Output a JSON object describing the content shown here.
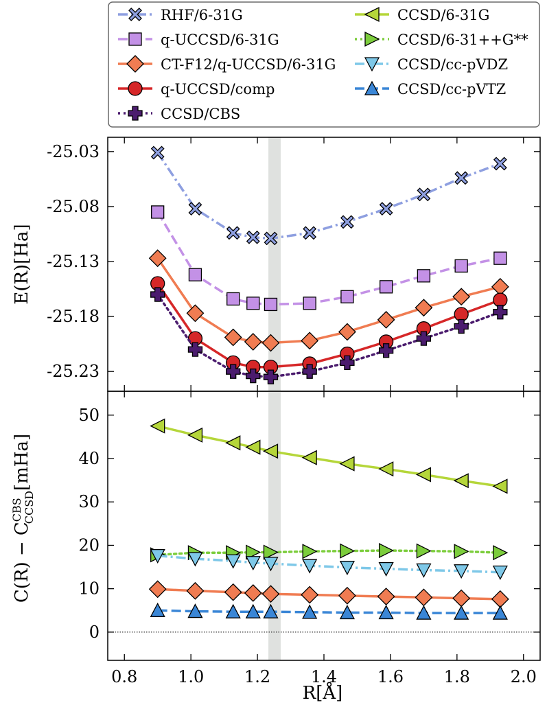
{
  "chart_data": [
    {
      "panel": "top",
      "type": "line",
      "ylabel": "E(R)[Ha]",
      "xlim": [
        0.75,
        2.05
      ],
      "ylim": [
        -25.248,
        -25.017
      ],
      "yticks": [
        -25.23,
        -25.18,
        -25.13,
        -25.08,
        -25.03
      ],
      "ytick_labels": [
        "-25.23",
        "-25.18",
        "-25.13",
        "-25.08",
        "-25.03"
      ],
      "highlight_band": [
        1.233,
        1.27
      ],
      "series": [
        {
          "name": "RHF/6-31G",
          "color": "#8e9fe0",
          "marker": "X",
          "dash": "dashdot",
          "x": [
            0.9,
            1.013,
            1.127,
            1.187,
            1.24,
            1.357,
            1.47,
            1.587,
            1.7,
            1.813,
            1.93
          ],
          "y": [
            -25.031,
            -25.082,
            -25.104,
            -25.108,
            -25.109,
            -25.104,
            -25.094,
            -25.082,
            -25.069,
            -25.054,
            -25.041
          ]
        },
        {
          "name": "q-UCCSD/6-31G",
          "color": "#c391e6",
          "marker": "square",
          "dash": "dashed",
          "x": [
            0.9,
            1.013,
            1.127,
            1.187,
            1.24,
            1.357,
            1.47,
            1.587,
            1.7,
            1.813,
            1.93
          ],
          "y": [
            -25.085,
            -25.142,
            -25.164,
            -25.168,
            -25.169,
            -25.168,
            -25.162,
            -25.153,
            -25.143,
            -25.134,
            -25.127
          ]
        },
        {
          "name": "CT-F12/q-UCCSD/6-31G",
          "color": "#f07c52",
          "marker": "diamond",
          "dash": "solid",
          "x": [
            0.9,
            1.013,
            1.127,
            1.187,
            1.24,
            1.357,
            1.47,
            1.587,
            1.7,
            1.813,
            1.93
          ],
          "y": [
            -25.127,
            -25.177,
            -25.199,
            -25.203,
            -25.204,
            -25.202,
            -25.194,
            -25.183,
            -25.172,
            -25.162,
            -25.153
          ]
        },
        {
          "name": "q-UCCSD/comp",
          "color": "#d62728",
          "marker": "circle",
          "dash": "solid",
          "x": [
            0.9,
            1.013,
            1.127,
            1.187,
            1.24,
            1.357,
            1.47,
            1.587,
            1.7,
            1.813,
            1.93
          ],
          "y": [
            -25.15,
            -25.2,
            -25.222,
            -25.226,
            -25.226,
            -25.223,
            -25.214,
            -25.203,
            -25.191,
            -25.178,
            -25.165
          ]
        },
        {
          "name": "CCSD/CBS",
          "color": "#4b1c6e",
          "marker": "plus",
          "dash": "dotted",
          "x": [
            0.9,
            1.013,
            1.127,
            1.187,
            1.24,
            1.357,
            1.47,
            1.587,
            1.7,
            1.813,
            1.93
          ],
          "y": [
            -25.16,
            -25.21,
            -25.23,
            -25.234,
            -25.235,
            -25.23,
            -25.222,
            -25.211,
            -25.2,
            -25.189,
            -25.176
          ]
        }
      ]
    },
    {
      "panel": "bottom",
      "type": "line",
      "xlabel": "R[Å]",
      "ylabel_main": "C(R) − C",
      "ylabel_sub": "CCSD",
      "ylabel_sup": "CBS",
      "ylabel_unit": "[mHa]",
      "xlim": [
        0.75,
        2.05
      ],
      "ylim": [
        -6.5,
        55.5
      ],
      "xticks": [
        0.8,
        1.0,
        1.2,
        1.4,
        1.6,
        1.8,
        2.0
      ],
      "xtick_labels": [
        "0.8",
        "1.0",
        "1.2",
        "1.4",
        "1.6",
        "1.8",
        "2.0"
      ],
      "yticks": [
        0,
        10,
        20,
        30,
        40,
        50
      ],
      "ytick_labels": [
        "0",
        "10",
        "20",
        "30",
        "40",
        "50"
      ],
      "zero_line": 0,
      "highlight_band": [
        1.233,
        1.27
      ],
      "series": [
        {
          "name": "CCSD/6-31G",
          "color": "#b5d63a",
          "marker": "triangle-left",
          "dash": "solid",
          "x": [
            0.9,
            1.013,
            1.127,
            1.187,
            1.24,
            1.357,
            1.47,
            1.587,
            1.7,
            1.813,
            1.93
          ],
          "y": [
            47.5,
            45.4,
            43.6,
            42.6,
            41.7,
            40.2,
            38.8,
            37.6,
            36.3,
            34.9,
            33.6
          ]
        },
        {
          "name": "CCSD/6-31++G**",
          "color": "#7ccd3c",
          "marker": "triangle-right",
          "dash": "dotted",
          "x": [
            0.9,
            1.013,
            1.127,
            1.187,
            1.24,
            1.357,
            1.47,
            1.587,
            1.7,
            1.813,
            1.93
          ],
          "y": [
            17.8,
            18.3,
            18.3,
            18.4,
            18.4,
            18.6,
            18.7,
            18.8,
            18.7,
            18.6,
            18.3
          ]
        },
        {
          "name": "CCSD/cc-pVDZ",
          "color": "#7ec8e8",
          "marker": "triangle-down",
          "dash": "dashdot",
          "x": [
            0.9,
            1.013,
            1.127,
            1.187,
            1.24,
            1.357,
            1.47,
            1.587,
            1.7,
            1.813,
            1.93
          ],
          "y": [
            17.6,
            16.9,
            16.4,
            16.0,
            15.8,
            15.3,
            14.9,
            14.6,
            14.3,
            14.1,
            13.8
          ]
        },
        {
          "name": "CT-F12/q-UCCSD/6-31G",
          "color": "#f07c52",
          "marker": "diamond",
          "dash": "solid",
          "x": [
            0.9,
            1.013,
            1.127,
            1.187,
            1.24,
            1.357,
            1.47,
            1.587,
            1.7,
            1.813,
            1.93
          ],
          "y": [
            9.9,
            9.5,
            9.2,
            9.0,
            8.8,
            8.6,
            8.4,
            8.2,
            8.0,
            7.8,
            7.6
          ]
        },
        {
          "name": "CCSD/cc-pVTZ",
          "color": "#3a86d6",
          "marker": "triangle-up",
          "dash": "dashed",
          "x": [
            0.9,
            1.013,
            1.127,
            1.187,
            1.24,
            1.357,
            1.47,
            1.587,
            1.7,
            1.813,
            1.93
          ],
          "y": [
            5.0,
            4.8,
            4.7,
            4.7,
            4.7,
            4.6,
            4.5,
            4.5,
            4.4,
            4.4,
            4.4
          ]
        }
      ]
    }
  ],
  "legend": {
    "placement": "top",
    "entries": [
      {
        "label": "RHF/6-31G",
        "color": "#8e9fe0",
        "marker": "X",
        "dash": "dashdot"
      },
      {
        "label": "q-UCCSD/6-31G",
        "color": "#c391e6",
        "marker": "square",
        "dash": "dashed"
      },
      {
        "label": "CT-F12/q-UCCSD/6-31G",
        "color": "#f07c52",
        "marker": "diamond",
        "dash": "solid"
      },
      {
        "label": "q-UCCSD/comp",
        "color": "#d62728",
        "marker": "circle",
        "dash": "solid"
      },
      {
        "label": "CCSD/CBS",
        "color": "#4b1c6e",
        "marker": "plus",
        "dash": "dotted"
      },
      {
        "label": "CCSD/6-31G",
        "color": "#b5d63a",
        "marker": "triangle-left",
        "dash": "solid"
      },
      {
        "label": "CCSD/6-31++G**",
        "color": "#7ccd3c",
        "marker": "triangle-right",
        "dash": "dotted"
      },
      {
        "label": "CCSD/cc-pVDZ",
        "color": "#7ec8e8",
        "marker": "triangle-down",
        "dash": "dashdot"
      },
      {
        "label": "CCSD/cc-pVTZ",
        "color": "#3a86d6",
        "marker": "triangle-up",
        "dash": "dashed"
      }
    ]
  }
}
